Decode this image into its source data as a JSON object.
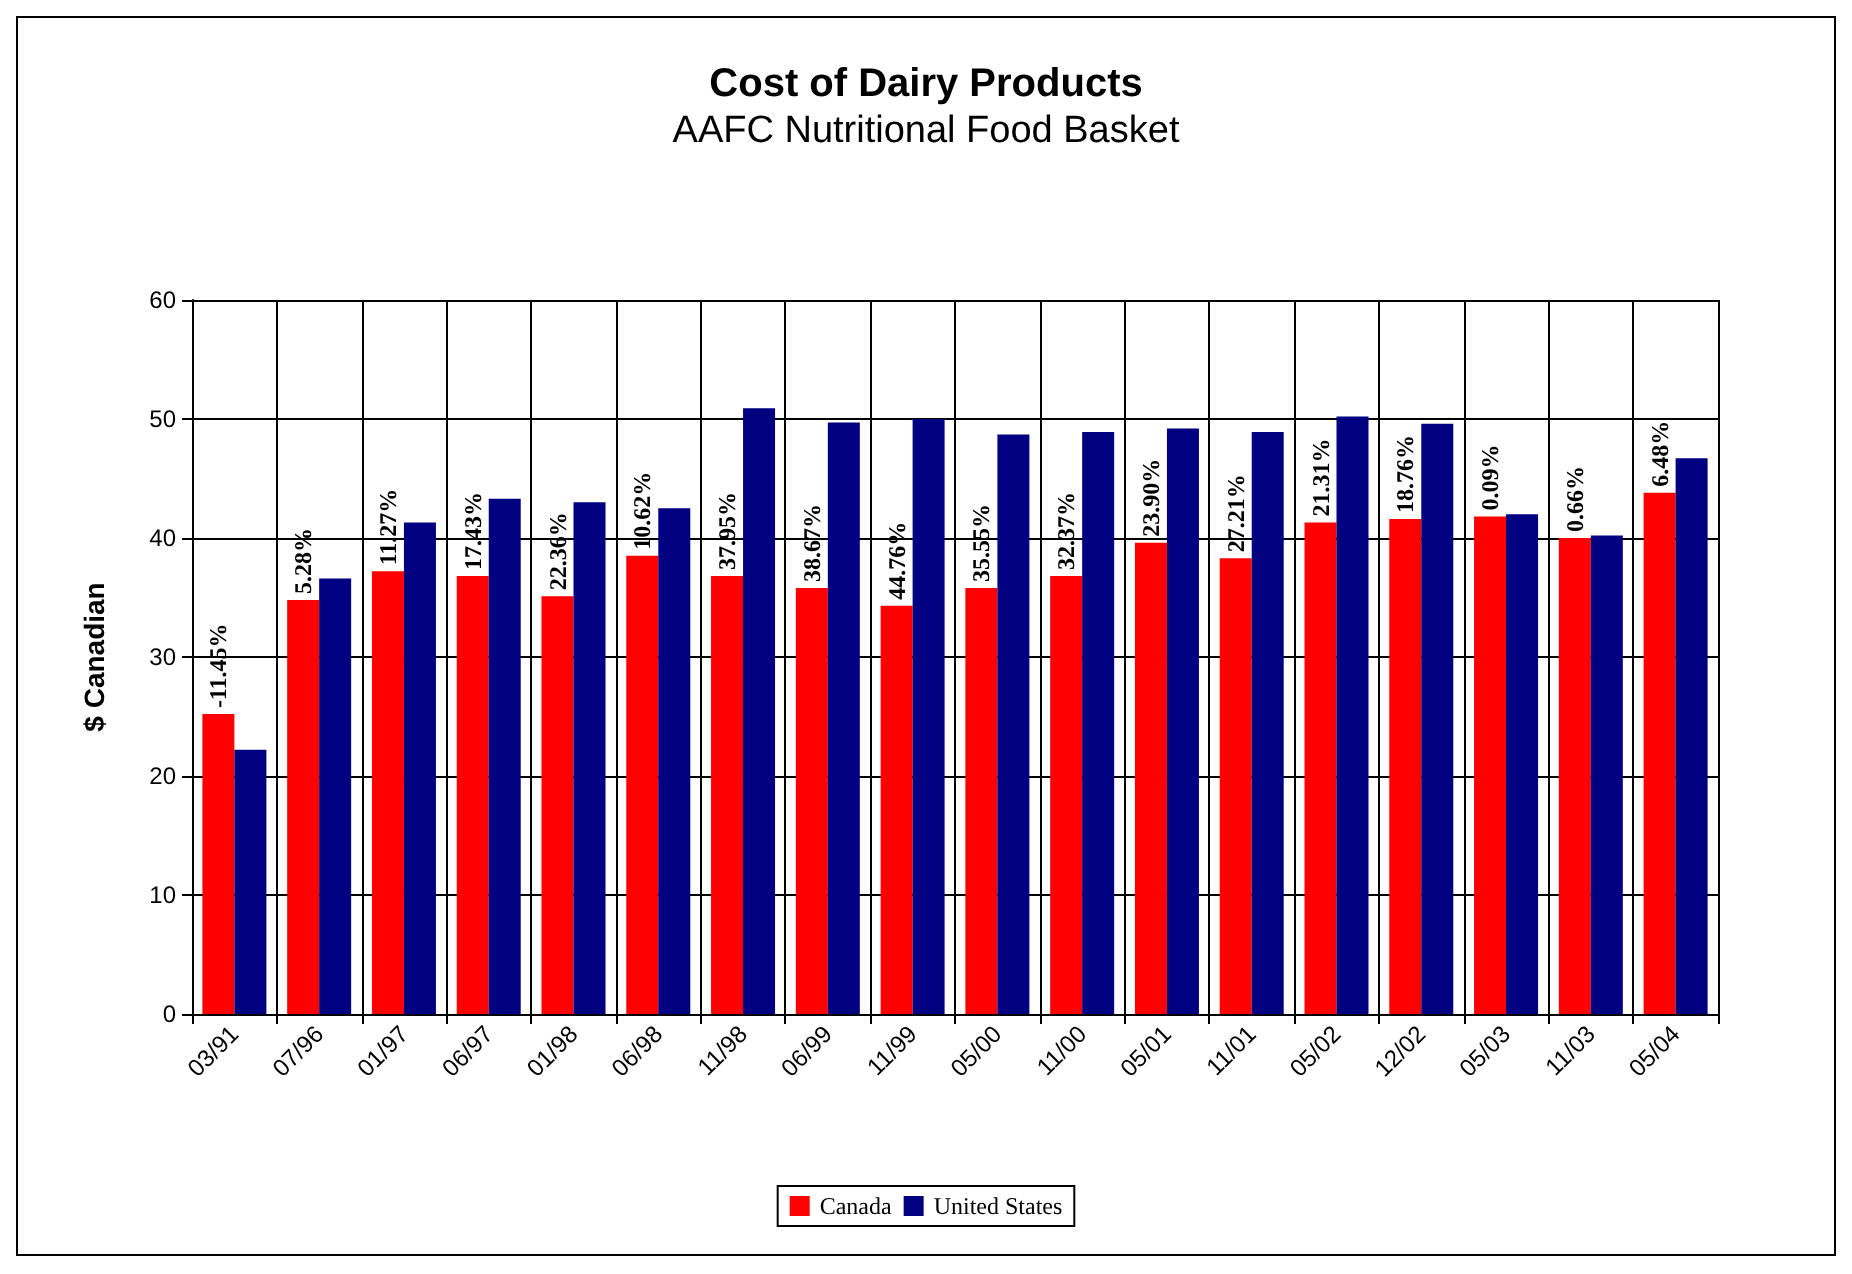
{
  "chart_data": {
    "type": "bar",
    "title": "Cost of Dairy Products",
    "subtitle": "AAFC Nutritional Food Basket",
    "ylabel": "$ Canadian",
    "categories": [
      "03/91",
      "07/96",
      "01/97",
      "06/97",
      "01/98",
      "06/98",
      "11/98",
      "06/99",
      "11/99",
      "05/00",
      "11/00",
      "05/01",
      "11/01",
      "05/02",
      "12/02",
      "05/03",
      "11/03",
      "05/04"
    ],
    "series": [
      {
        "name": "Canada",
        "color": "#ff0000",
        "values": [
          25.2,
          34.8,
          37.2,
          36.8,
          35.1,
          38.5,
          36.8,
          35.8,
          34.3,
          35.8,
          36.8,
          39.6,
          38.3,
          41.3,
          41.6,
          41.8,
          40.0,
          43.8
        ]
      },
      {
        "name": "United States",
        "color": "#000080",
        "values": [
          22.2,
          36.6,
          41.3,
          43.3,
          43.0,
          42.5,
          50.9,
          49.7,
          50.0,
          48.7,
          48.9,
          49.2,
          48.9,
          50.2,
          49.6,
          42.0,
          40.2,
          46.7
        ]
      }
    ],
    "annotations": [
      {
        "text": "-11.45%",
        "x": "03/91",
        "y": 25.2
      },
      {
        "text": "5.28%",
        "x": "07/96",
        "y": 34.8
      },
      {
        "text": "11.27%",
        "x": "01/97",
        "y": 37.2
      },
      {
        "text": "17.43%",
        "x": "06/97",
        "y": 36.8
      },
      {
        "text": "22.36%",
        "x": "01/98",
        "y": 35.1
      },
      {
        "text": "10.62%",
        "x": "06/98",
        "y": 38.5
      },
      {
        "text": "37.95%",
        "x": "11/98",
        "y": 36.8
      },
      {
        "text": "38.67%",
        "x": "06/99",
        "y": 35.8
      },
      {
        "text": "44.76%",
        "x": "11/99",
        "y": 34.3
      },
      {
        "text": "35.55%",
        "x": "05/00",
        "y": 35.8
      },
      {
        "text": "32.37%",
        "x": "11/00",
        "y": 36.8
      },
      {
        "text": "23.90%",
        "x": "05/01",
        "y": 39.6
      },
      {
        "text": "27.21%",
        "x": "11/01",
        "y": 38.3
      },
      {
        "text": "21.31%",
        "x": "05/02",
        "y": 41.3
      },
      {
        "text": "18.76%",
        "x": "12/02",
        "y": 41.6
      },
      {
        "text": "0.09%",
        "x": "05/03",
        "y": 41.8
      },
      {
        "text": "0.66%",
        "x": "11/03",
        "y": 40.0
      },
      {
        "text": "6.48%",
        "x": "05/04",
        "y": 43.8
      }
    ],
    "ylim": [
      0,
      60
    ],
    "yticks": [
      0,
      10,
      20,
      30,
      40,
      50,
      60
    ],
    "grid": true,
    "legend": "bottom"
  }
}
